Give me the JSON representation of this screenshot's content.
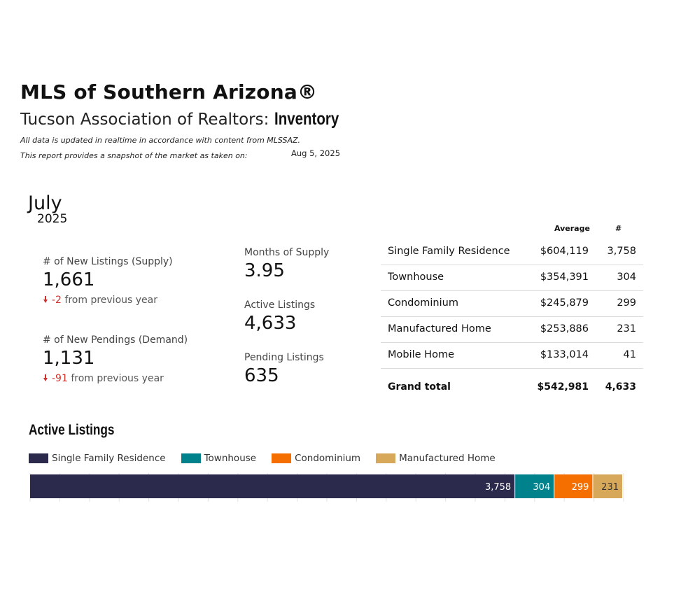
{
  "header": {
    "title": "MLS of Southern Arizona®",
    "subtitle_prefix": "Tucson Association of Realtors: ",
    "subtitle_bold": "Inventory",
    "note1": "All data is updated in realtime in accordance with content from MLSSAZ.",
    "note2": "This report provides a snapshot of the market as taken on:",
    "date": "Aug 5, 2025"
  },
  "period": {
    "month": "July",
    "year": "2025"
  },
  "kpis": {
    "new_listings": {
      "label": "# of New Listings (Supply)",
      "value": "1,661",
      "delta": "-2",
      "delta_text": "from previous year"
    },
    "new_pendings": {
      "label": "# of New Pendings (Demand)",
      "value": "1,131",
      "delta": "-91",
      "delta_text": "from previous year"
    },
    "months_supply": {
      "label": "Months of Supply",
      "value": "3.95"
    },
    "active_listings": {
      "label": "Active Listings",
      "value": "4,633"
    },
    "pending_listings": {
      "label": "Pending Listings",
      "value": "635"
    }
  },
  "table": {
    "headers": {
      "average": "Average",
      "count": "#"
    },
    "rows": [
      {
        "name": "Single Family Residence",
        "average": "$604,119",
        "count": "3,758"
      },
      {
        "name": "Townhouse",
        "average": "$354,391",
        "count": "304"
      },
      {
        "name": "Condominium",
        "average": "$245,879",
        "count": "299"
      },
      {
        "name": "Manufactured Home",
        "average": "$253,886",
        "count": "231"
      },
      {
        "name": "Mobile Home",
        "average": "$133,014",
        "count": "41"
      }
    ],
    "grand_total": {
      "name": "Grand total",
      "average": "$542,981",
      "count": "4,633"
    }
  },
  "chart_data": {
    "type": "bar",
    "orientation": "horizontal-stacked",
    "title": "Active Listings",
    "legend_position": "top-left",
    "series": [
      {
        "name": "Single Family Residence",
        "value": 3758,
        "label": "3,758",
        "color": "#2b2a4c"
      },
      {
        "name": "Townhouse",
        "value": 304,
        "label": "304",
        "color": "#00828c"
      },
      {
        "name": "Condominium",
        "value": 299,
        "label": "299",
        "color": "#f56e00"
      },
      {
        "name": "Manufactured Home",
        "value": 231,
        "label": "231",
        "color": "#d8a85a"
      }
    ],
    "grid": true
  }
}
